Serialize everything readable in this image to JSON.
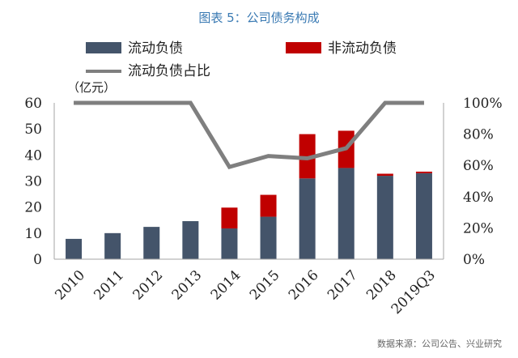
{
  "chart_data": {
    "type": "bar",
    "title": "图表 5：公司债务构成",
    "unit_label": "（亿元）",
    "source": "数据来源：公司公告、兴业研究",
    "categories": [
      "2010",
      "2011",
      "2012",
      "2013",
      "2014",
      "2015",
      "2016",
      "2017",
      "2018",
      "2019Q3"
    ],
    "y_left_ticks": [
      "0",
      "10",
      "20",
      "30",
      "40",
      "50",
      "60"
    ],
    "y_right_ticks": [
      "0%",
      "20%",
      "40%",
      "60%",
      "80%",
      "100%"
    ],
    "ylim_left": [
      0,
      60
    ],
    "ylim_right": [
      0,
      100
    ],
    "legend_placement": "top",
    "stacked": true,
    "series": [
      {
        "name": "流动负债",
        "kind": "bar",
        "axis": "left",
        "color": "#44546a",
        "values": [
          7.8,
          10,
          12.4,
          14.6,
          11.8,
          16.3,
          31,
          35,
          32,
          33
        ]
      },
      {
        "name": "非流动负债",
        "kind": "bar",
        "axis": "left",
        "color": "#c00000",
        "values": [
          0,
          0,
          0,
          0,
          8,
          8.4,
          17,
          14.3,
          0.8,
          0.6
        ]
      },
      {
        "name": "流动负债占比",
        "kind": "line",
        "axis": "right",
        "color": "#7f7f7f",
        "values": [
          100,
          100,
          100,
          100,
          59,
          66,
          64.5,
          71,
          100,
          100
        ]
      }
    ]
  }
}
